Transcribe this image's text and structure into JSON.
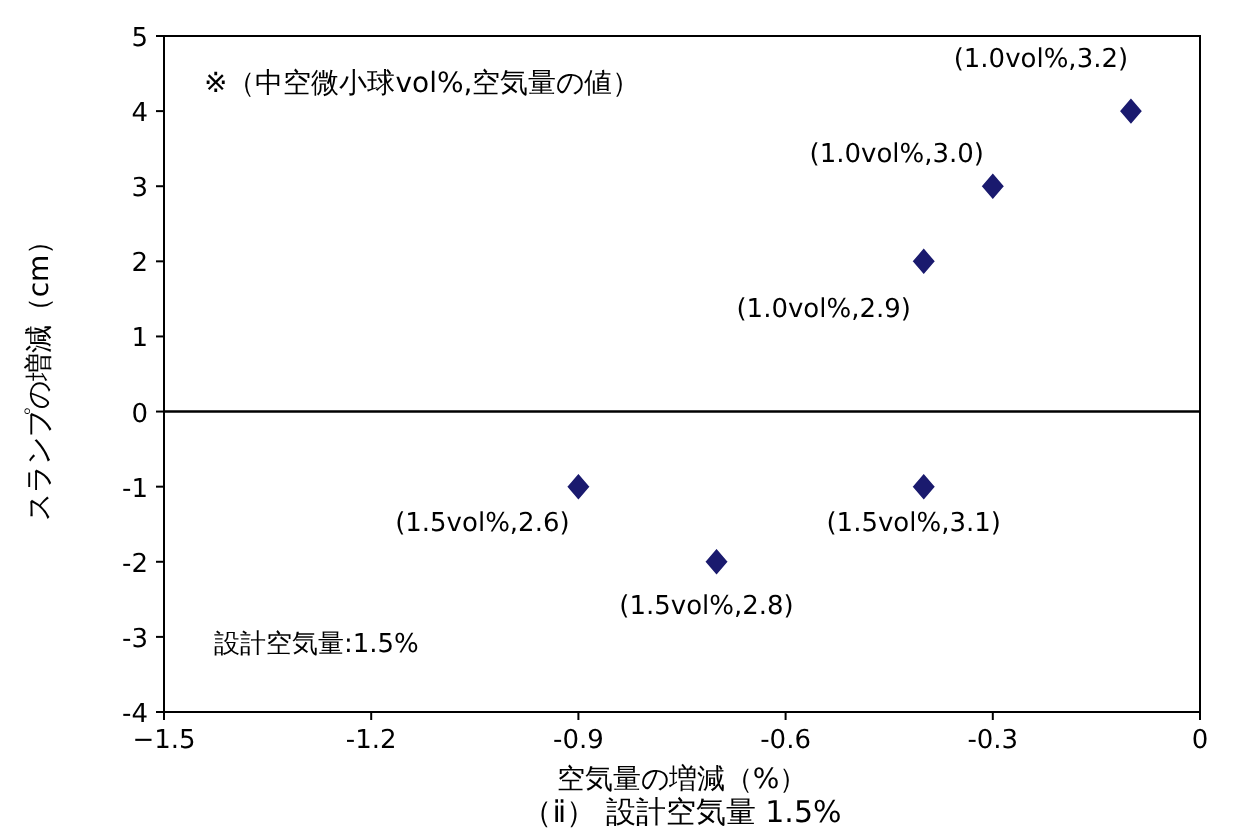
{
  "chart_data": {
    "type": "scatter",
    "xlabel": "空気量の増減（%）",
    "ylabel": "スランプの増減（cm）",
    "x": [
      -0.1,
      -0.3,
      -0.4,
      -0.9,
      -0.7,
      -0.4
    ],
    "values": [
      4,
      3,
      2,
      -1,
      -2,
      -1
    ],
    "color": "#1a1a6e",
    "marker": "diamond",
    "grid": false,
    "xlim": [
      -1.5,
      0
    ],
    "xticks": [
      {
        "value": -1.5,
        "label": "−1.5"
      },
      -1.2,
      -0.9,
      -0.6,
      -0.3,
      0
    ],
    "ylim": [
      -4,
      5
    ],
    "yticks": [
      -4,
      -3,
      -2,
      -1,
      0,
      1,
      2,
      3,
      4,
      5
    ],
    "ref_lines": [
      {
        "axis": "y",
        "value": 0,
        "color": "#000000"
      }
    ],
    "annotations": [
      {
        "text": "(1.0vol%,3.2)",
        "x": -0.1,
        "y": 4
      },
      {
        "text": "(1.0vol%,3.0)",
        "x": -0.3,
        "y": 3
      },
      {
        "text": "(1.0vol%,2.9)",
        "x": -0.4,
        "y": 2
      },
      {
        "text": "(1.5vol%,2.6)",
        "x": -0.9,
        "y": -1
      },
      {
        "text": "(1.5vol%,2.8)",
        "x": -0.7,
        "y": -2
      },
      {
        "text": "(1.5vol%,3.1)",
        "x": -0.4,
        "y": -1
      },
      "※（中空微小球vol%,空気量の値）",
      "設計空気量:1.5%",
      "（ⅱ） 設計空気量 1.5%"
    ]
  }
}
